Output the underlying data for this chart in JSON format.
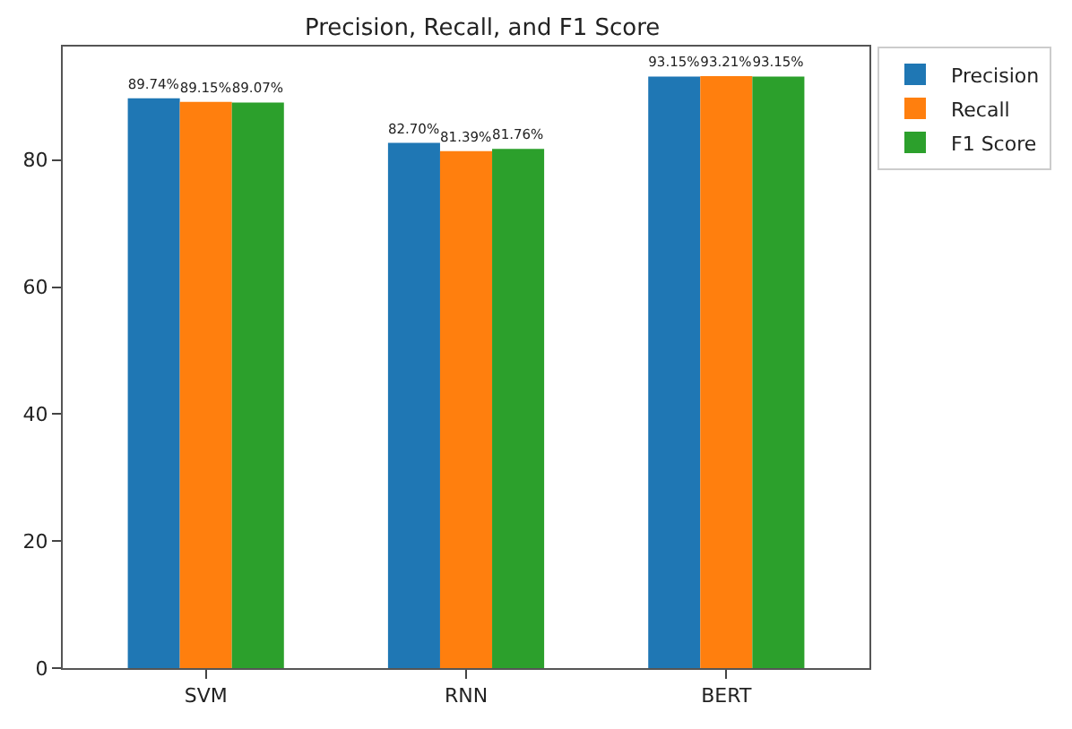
{
  "chart_data": {
    "type": "bar",
    "title": "Precision, Recall, and F1 Score",
    "categories": [
      "SVM",
      "RNN",
      "BERT"
    ],
    "series": [
      {
        "name": "Precision",
        "color": "#1f77b4",
        "values": [
          89.74,
          82.7,
          93.15
        ],
        "value_labels": [
          "89.74%",
          "82.70%",
          "93.15%"
        ]
      },
      {
        "name": "Recall",
        "color": "#ff7f0e",
        "values": [
          89.15,
          81.39,
          93.21
        ],
        "value_labels": [
          "89.15%",
          "81.39%",
          "93.21%"
        ]
      },
      {
        "name": "F1 Score",
        "color": "#2ca02c",
        "values": [
          89.07,
          81.76,
          93.15
        ],
        "value_labels": [
          "89.07%",
          "81.76%",
          "93.15%"
        ]
      }
    ],
    "ylim": [
      0,
      97.87
    ],
    "yticks": [
      0,
      20,
      40,
      60,
      80
    ],
    "legend": "top right"
  }
}
